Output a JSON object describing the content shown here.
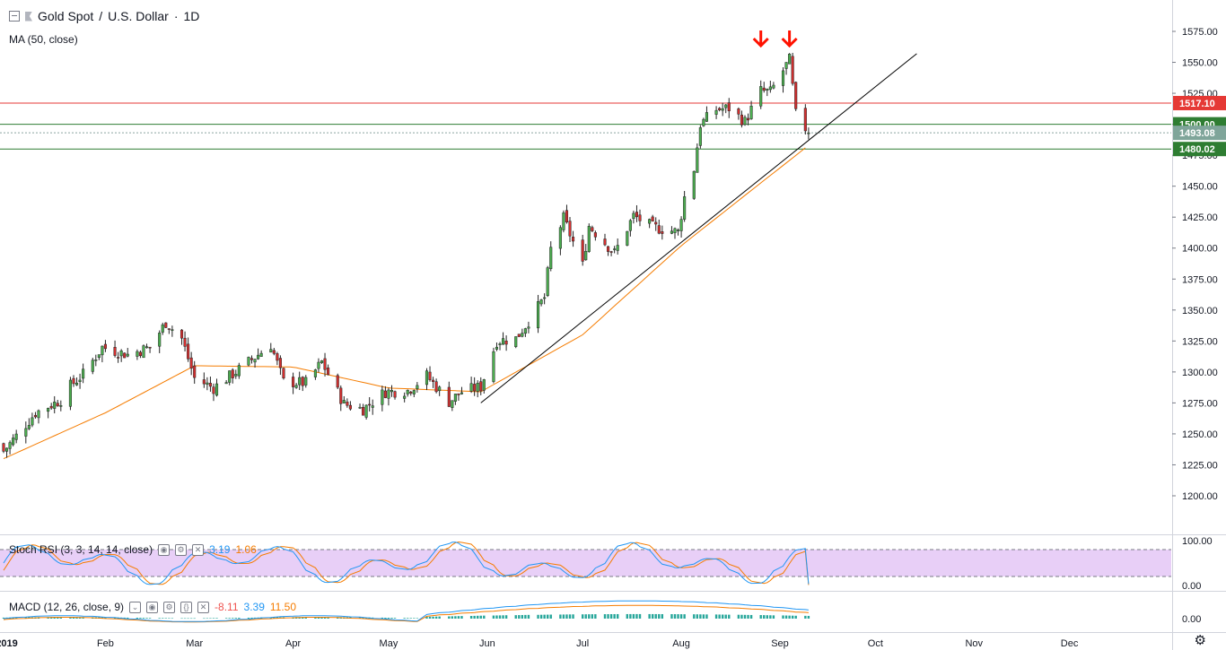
{
  "header": {
    "symbol": "Gold Spot",
    "separator": "/",
    "quote": "U.S. Dollar",
    "dot": "·",
    "interval": "1D",
    "ma_label": "MA (50, close)"
  },
  "stoch": {
    "label": "Stoch RSI (3, 3, 14, 14, close)",
    "k_value": "3.19",
    "d_value": "1.06",
    "k_color": "#2196f3",
    "d_color": "#f57c00",
    "upper": 80,
    "lower": 20
  },
  "macd": {
    "label": "MACD (12, 26, close, 9)",
    "hist_value": "-8.11",
    "macd_value": "3.39",
    "signal_value": "11.50",
    "macd_color": "#2196f3",
    "signal_color": "#f57c00"
  },
  "colors": {
    "up": "#26a69a",
    "down": "#ef5350",
    "candle_body_up": "#4caf50",
    "candle_body_down": "#d32f2f",
    "ma": "#f57c00",
    "resistance": "#e53935",
    "support": "#2e7d32",
    "arrow": "#ff1100"
  },
  "chart_data": {
    "type": "candlestick",
    "title": "Gold Spot / U.S. Dollar · 1D",
    "y_axis": {
      "min": 1195,
      "max": 1585,
      "ticks": [
        "1575.00",
        "1550.00",
        "1525.00",
        "1500.00",
        "1475.00",
        "1450.00",
        "1425.00",
        "1400.00",
        "1375.00",
        "1350.00",
        "1325.00",
        "1300.00",
        "1275.00",
        "1250.00",
        "1225.00",
        "1200.00"
      ]
    },
    "x_axis": {
      "labels": [
        "2019",
        "Feb",
        "Mar",
        "Apr",
        "May",
        "Jun",
        "Jul",
        "Aug",
        "Sep",
        "Oct",
        "Nov",
        "Dec"
      ],
      "start_date": "2018-12-31",
      "end_date": "2019-12-20"
    },
    "price_labels": [
      {
        "value": "1517.10",
        "level": 1517.1,
        "kind": "resistance"
      },
      {
        "value": "1500.00",
        "level": 1500.0,
        "kind": "support"
      },
      {
        "value": "1493.08",
        "level": 1493.08,
        "kind": "last"
      },
      {
        "value": "1480.02",
        "level": 1480.02,
        "kind": "support"
      }
    ],
    "trendline": {
      "from": {
        "date": "2019-05-30",
        "price": 1275
      },
      "to": {
        "date": "2019-10-14",
        "price": 1557
      }
    },
    "markers": [
      {
        "date": "2019-08-26",
        "type": "down-arrow"
      },
      {
        "date": "2019-09-04",
        "type": "down-arrow"
      }
    ],
    "close_anchors": [
      {
        "date": "2018-12-31",
        "close": 1282
      },
      {
        "date": "2019-01-04",
        "close": 1285
      },
      {
        "date": "2019-01-10",
        "close": 1290
      },
      {
        "date": "2019-01-18",
        "close": 1282
      },
      {
        "date": "2019-01-25",
        "close": 1298
      },
      {
        "date": "2019-01-31",
        "close": 1320
      },
      {
        "date": "2019-02-08",
        "close": 1314
      },
      {
        "date": "2019-02-15",
        "close": 1320
      },
      {
        "date": "2019-02-20",
        "close": 1340
      },
      {
        "date": "2019-02-25",
        "close": 1327
      },
      {
        "date": "2019-03-01",
        "close": 1295
      },
      {
        "date": "2019-03-07",
        "close": 1287
      },
      {
        "date": "2019-03-15",
        "close": 1302
      },
      {
        "date": "2019-03-25",
        "close": 1322
      },
      {
        "date": "2019-03-29",
        "close": 1292
      },
      {
        "date": "2019-04-05",
        "close": 1291
      },
      {
        "date": "2019-04-10",
        "close": 1308
      },
      {
        "date": "2019-04-17",
        "close": 1274
      },
      {
        "date": "2019-04-23",
        "close": 1270
      },
      {
        "date": "2019-04-30",
        "close": 1284
      },
      {
        "date": "2019-05-07",
        "close": 1285
      },
      {
        "date": "2019-05-13",
        "close": 1297
      },
      {
        "date": "2019-05-20",
        "close": 1276
      },
      {
        "date": "2019-05-24",
        "close": 1284
      },
      {
        "date": "2019-05-30",
        "close": 1288
      },
      {
        "date": "2019-06-04",
        "close": 1325
      },
      {
        "date": "2019-06-10",
        "close": 1327
      },
      {
        "date": "2019-06-14",
        "close": 1341
      },
      {
        "date": "2019-06-19",
        "close": 1360
      },
      {
        "date": "2019-06-21",
        "close": 1399
      },
      {
        "date": "2019-06-25",
        "close": 1424
      },
      {
        "date": "2019-07-01",
        "close": 1386
      },
      {
        "date": "2019-07-03",
        "close": 1418
      },
      {
        "date": "2019-07-11",
        "close": 1396
      },
      {
        "date": "2019-07-17",
        "close": 1426
      },
      {
        "date": "2019-07-23",
        "close": 1417
      },
      {
        "date": "2019-07-31",
        "close": 1413
      },
      {
        "date": "2019-08-02",
        "close": 1441
      },
      {
        "date": "2019-08-05",
        "close": 1464
      },
      {
        "date": "2019-08-07",
        "close": 1500
      },
      {
        "date": "2019-08-12",
        "close": 1512
      },
      {
        "date": "2019-08-16",
        "close": 1513
      },
      {
        "date": "2019-08-21",
        "close": 1502
      },
      {
        "date": "2019-08-26",
        "close": 1527
      },
      {
        "date": "2019-08-29",
        "close": 1526
      },
      {
        "date": "2019-09-04",
        "close": 1552
      },
      {
        "date": "2019-09-06",
        "close": 1508
      },
      {
        "date": "2019-09-10",
        "close": 1493
      }
    ],
    "ma50_anchors": [
      {
        "date": "2018-12-31",
        "value": 1230
      },
      {
        "date": "2019-02-01",
        "value": 1267
      },
      {
        "date": "2019-03-01",
        "value": 1305
      },
      {
        "date": "2019-04-01",
        "value": 1304
      },
      {
        "date": "2019-05-01",
        "value": 1287
      },
      {
        "date": "2019-05-30",
        "value": 1284
      },
      {
        "date": "2019-07-01",
        "value": 1330
      },
      {
        "date": "2019-08-01",
        "value": 1402
      },
      {
        "date": "2019-09-10",
        "value": 1483
      }
    ]
  }
}
